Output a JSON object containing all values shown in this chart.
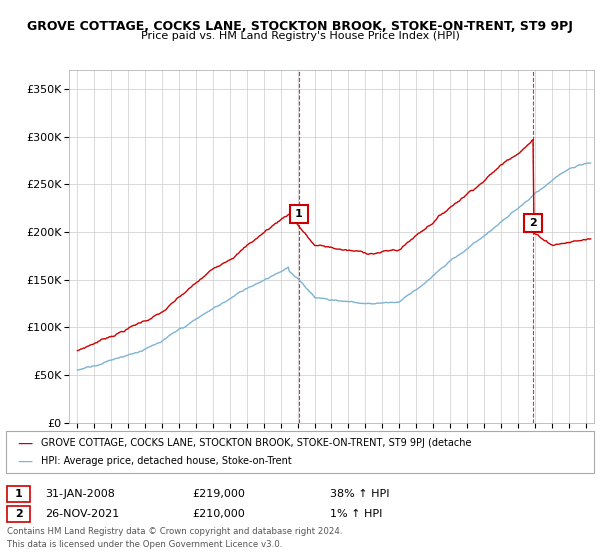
{
  "title": "GROVE COTTAGE, COCKS LANE, STOCKTON BROOK, STOKE-ON-TRENT, ST9 9PJ",
  "subtitle": "Price paid vs. HM Land Registry's House Price Index (HPI)",
  "ylabel_ticks": [
    "£0",
    "£50K",
    "£100K",
    "£150K",
    "£200K",
    "£250K",
    "£300K",
    "£350K"
  ],
  "ytick_vals": [
    0,
    50000,
    100000,
    150000,
    200000,
    250000,
    300000,
    350000
  ],
  "ylim": [
    0,
    370000
  ],
  "xlim_start": 1994.5,
  "xlim_end": 2025.5,
  "sale1_date": 2008.08,
  "sale1_price": 219000,
  "sale1_label": "1",
  "sale2_date": 2021.9,
  "sale2_price": 210000,
  "sale2_label": "2",
  "legend_line1": "GROVE COTTAGE, COCKS LANE, STOCKTON BROOK, STOKE-ON-TRENT, ST9 9PJ (detache",
  "legend_line2": "HPI: Average price, detached house, Stoke-on-Trent",
  "footer1": "Contains HM Land Registry data © Crown copyright and database right 2024.",
  "footer2": "This data is licensed under the Open Government Licence v3.0.",
  "red_color": "#cc0000",
  "blue_color": "#7fb3d3",
  "background_color": "#ffffff",
  "grid_color": "#cccccc",
  "ann1_date": "31-JAN-2008",
  "ann1_price": "£219,000",
  "ann1_hpi": "38% ↑ HPI",
  "ann2_date": "26-NOV-2021",
  "ann2_price": "£210,000",
  "ann2_hpi": "1% ↑ HPI"
}
